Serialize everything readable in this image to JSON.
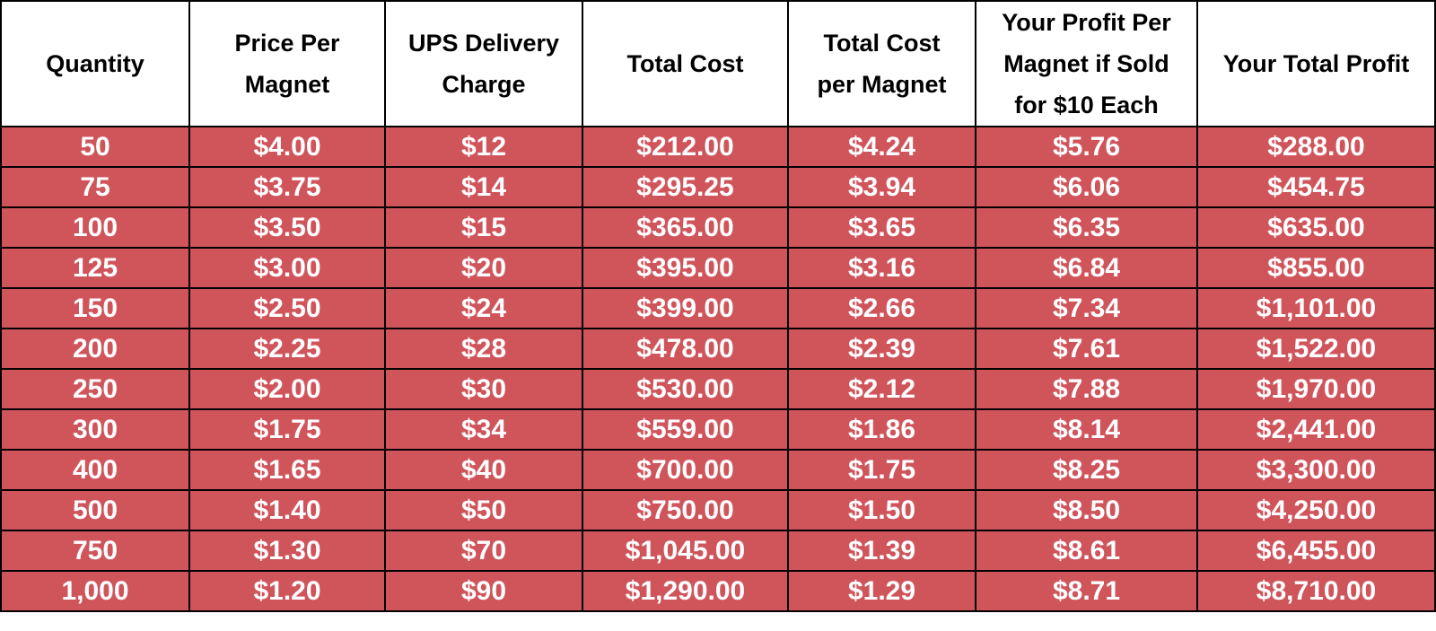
{
  "table": {
    "headers": [
      [
        "Quantity"
      ],
      [
        "Price Per",
        "Magnet"
      ],
      [
        "UPS Delivery",
        "Charge"
      ],
      [
        "Total Cost"
      ],
      [
        "Total Cost",
        "per Magnet"
      ],
      [
        "Your Profit Per",
        "Magnet if Sold",
        "for $10 Each"
      ],
      [
        "Your  Total Profit"
      ]
    ],
    "rows": [
      [
        "50",
        "$4.00",
        "$12",
        "$212.00",
        "$4.24",
        "$5.76",
        "$288.00"
      ],
      [
        "75",
        "$3.75",
        "$14",
        "$295.25",
        "$3.94",
        "$6.06",
        "$454.75"
      ],
      [
        "100",
        "$3.50",
        "$15",
        "$365.00",
        "$3.65",
        "$6.35",
        "$635.00"
      ],
      [
        "125",
        "$3.00",
        "$20",
        "$395.00",
        "$3.16",
        "$6.84",
        "$855.00"
      ],
      [
        "150",
        "$2.50",
        "$24",
        "$399.00",
        "$2.66",
        "$7.34",
        "$1,101.00"
      ],
      [
        "200",
        "$2.25",
        "$28",
        "$478.00",
        "$2.39",
        "$7.61",
        "$1,522.00"
      ],
      [
        "250",
        "$2.00",
        "$30",
        "$530.00",
        "$2.12",
        "$7.88",
        "$1,970.00"
      ],
      [
        "300",
        "$1.75",
        "$34",
        "$559.00",
        "$1.86",
        "$8.14",
        "$2,441.00"
      ],
      [
        "400",
        "$1.65",
        "$40",
        "$700.00",
        "$1.75",
        "$8.25",
        "$3,300.00"
      ],
      [
        "500",
        "$1.40",
        "$50",
        "$750.00",
        "$1.50",
        "$8.50",
        "$4,250.00"
      ],
      [
        "750",
        "$1.30",
        "$70",
        "$1,045.00",
        "$1.39",
        "$8.61",
        "$6,455.00"
      ],
      [
        "1,000",
        "$1.20",
        "$90",
        "$1,290.00",
        "$1.29",
        "$8.71",
        "$8,710.00"
      ]
    ]
  },
  "colors": {
    "row_fill": "#cf555b",
    "row_text": "#ffffff",
    "header_fill": "#ffffff",
    "header_text": "#000000",
    "border": "#000000"
  }
}
